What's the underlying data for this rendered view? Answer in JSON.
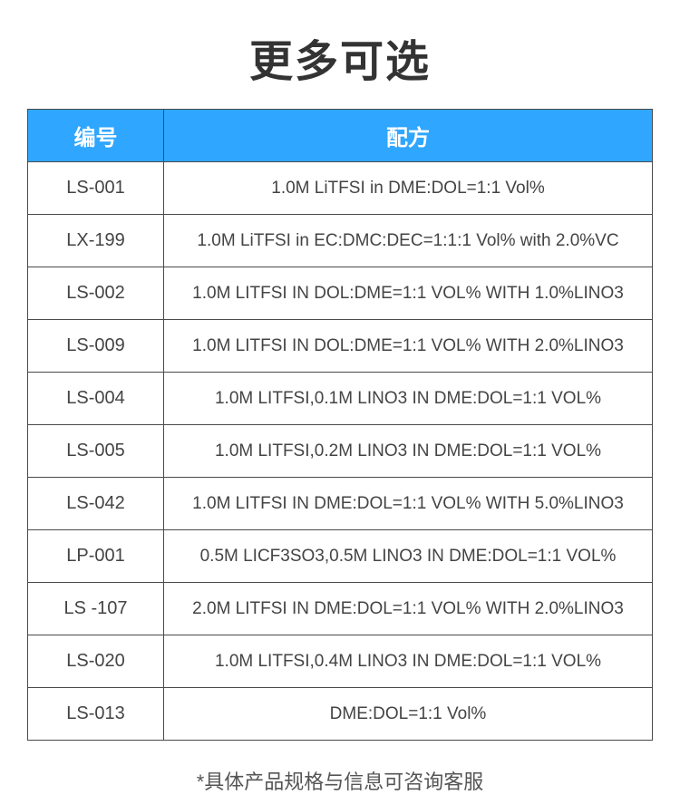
{
  "title": "更多可选",
  "footnote": "*具体产品规格与信息可咨询客服",
  "columns": {
    "id_header": "编号",
    "formula_header": "配方"
  },
  "header_bg": "#2fa6ff",
  "header_fg": "#ffffff",
  "border_color": "#4a4a4a",
  "rows": [
    {
      "id": "LS-001",
      "formula": "1.0M LiTFSI in DME:DOL=1:1 Vol%"
    },
    {
      "id": "LX-199",
      "formula": "1.0M LiTFSI in EC:DMC:DEC=1:1:1 Vol% with 2.0%VC"
    },
    {
      "id": "LS-002",
      "formula": "1.0M LITFSI IN DOL:DME=1:1 VOL% WITH 1.0%LINO3"
    },
    {
      "id": "LS-009",
      "formula": "1.0M LITFSI IN DOL:DME=1:1 VOL% WITH 2.0%LINO3"
    },
    {
      "id": "LS-004",
      "formula": "1.0M LITFSI,0.1M LINO3 IN DME:DOL=1:1 VOL%"
    },
    {
      "id": "LS-005",
      "formula": "1.0M LITFSI,0.2M LINO3 IN DME:DOL=1:1 VOL%"
    },
    {
      "id": "LS-042",
      "formula": "1.0M LITFSI IN DME:DOL=1:1 VOL% WITH 5.0%LINO3"
    },
    {
      "id": "LP-001",
      "formula": "0.5M LICF3SO3,0.5M LINO3 IN DME:DOL=1:1 VOL%"
    },
    {
      "id": "LS -107",
      "formula": "2.0M LITFSI IN DME:DOL=1:1 VOL% WITH 2.0%LINO3"
    },
    {
      "id": "LS-020",
      "formula": "1.0M LITFSI,0.4M LINO3 IN DME:DOL=1:1 VOL%"
    },
    {
      "id": "LS-013",
      "formula": "DME:DOL=1:1 Vol%"
    }
  ]
}
